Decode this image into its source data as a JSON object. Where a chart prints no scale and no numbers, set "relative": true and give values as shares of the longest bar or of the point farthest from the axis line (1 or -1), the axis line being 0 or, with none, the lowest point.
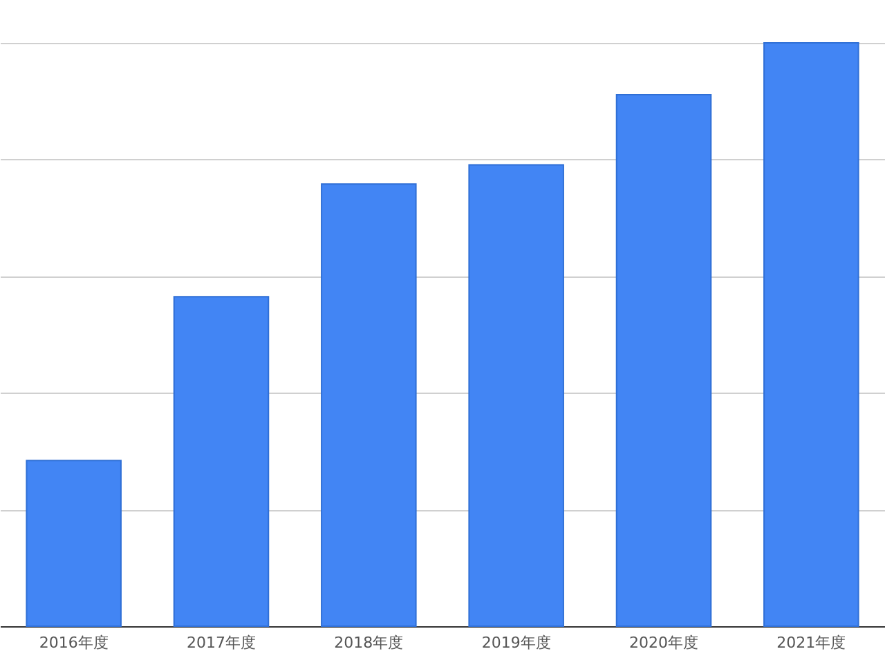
{
  "chart_data": {
    "type": "bar",
    "relative": true,
    "categories": [
      "2016年度",
      "2017年度",
      "2018年度",
      "2019年度",
      "2020年度",
      "2021年度"
    ],
    "values": [
      0.284,
      0.565,
      0.758,
      0.791,
      0.911,
      1
    ],
    "color": "#4285f4",
    "grid": "y"
  }
}
